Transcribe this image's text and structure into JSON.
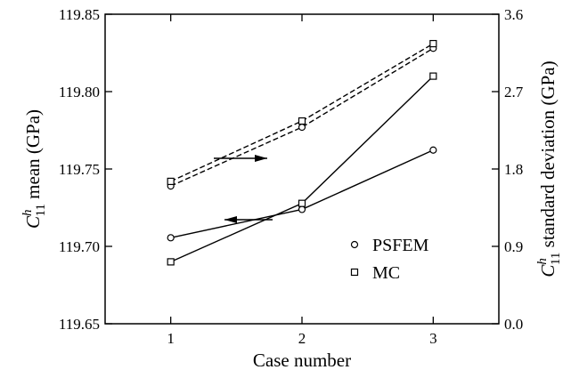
{
  "chart_data": {
    "type": "line",
    "categories": [
      1,
      2,
      3
    ],
    "xlabel": "Case number",
    "ylabel_left": {
      "symbol": "C",
      "sup": "h",
      "sub": "11",
      "text": " mean (GPa)"
    },
    "ylabel_right": {
      "symbol": "C",
      "sup": "h",
      "sub": "11",
      "text": " standard deviation (GPa)"
    },
    "xlim": [
      0.5,
      3.5
    ],
    "ylim_left": [
      119.65,
      119.85
    ],
    "ylim_right": [
      0.0,
      3.6
    ],
    "x_ticks": [
      "1",
      "2",
      "3"
    ],
    "y_ticks_left": [
      "119.65",
      "119.70",
      "119.75",
      "119.80",
      "119.85"
    ],
    "y_ticks_right": [
      "0.0",
      "0.9",
      "1.8",
      "2.7",
      "3.6"
    ],
    "series": [
      {
        "name": "PSFEM",
        "axis": "left",
        "style": "dashed",
        "marker": "circle",
        "values": [
          119.739,
          119.777,
          119.828
        ]
      },
      {
        "name": "MC",
        "axis": "left",
        "style": "dashed",
        "marker": "square",
        "values": [
          119.742,
          119.781,
          119.831
        ]
      },
      {
        "name": "PSFEM",
        "axis": "right",
        "style": "solid",
        "marker": "circle",
        "values": [
          1.0,
          1.33,
          2.02
        ]
      },
      {
        "name": "MC",
        "axis": "right",
        "style": "solid",
        "marker": "square",
        "values": [
          0.72,
          1.4,
          2.88
        ]
      }
    ],
    "legend": {
      "position": "bottom-right",
      "entries": [
        {
          "marker": "circle",
          "label": "PSFEM"
        },
        {
          "marker": "square",
          "label": "MC"
        }
      ]
    },
    "annotations": [
      {
        "type": "arrow",
        "direction": "right",
        "points_to": "right-axis"
      },
      {
        "type": "arrow",
        "direction": "left",
        "points_to": "left-axis"
      }
    ],
    "grid": false
  }
}
